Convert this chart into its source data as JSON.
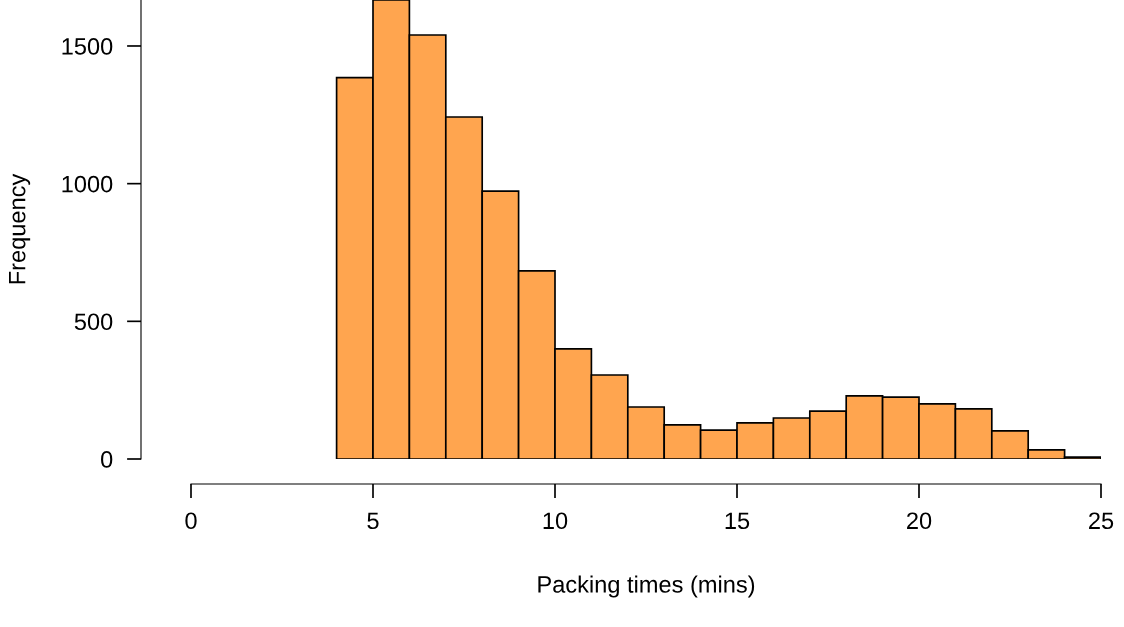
{
  "chart_data": {
    "type": "histogram",
    "xlabel": "Packing times (mins)",
    "ylabel": "Frequency",
    "bins": [
      4,
      5,
      6,
      7,
      8,
      9,
      10,
      11,
      12,
      13,
      14,
      15,
      16,
      17,
      18,
      19,
      20,
      21,
      22,
      23,
      24,
      25
    ],
    "values": [
      1385,
      1667,
      1540,
      1242,
      973,
      683,
      400,
      305,
      189,
      124,
      105,
      131,
      149,
      174,
      229,
      225,
      200,
      182,
      102,
      33,
      7
    ],
    "color": "#ffa54f",
    "xlim": [
      0,
      25
    ],
    "xticks": [
      0,
      5,
      10,
      15,
      20,
      25
    ],
    "ylim": [
      0,
      1667
    ],
    "yticks": [
      0,
      500,
      1000,
      1500
    ],
    "grid": false
  }
}
